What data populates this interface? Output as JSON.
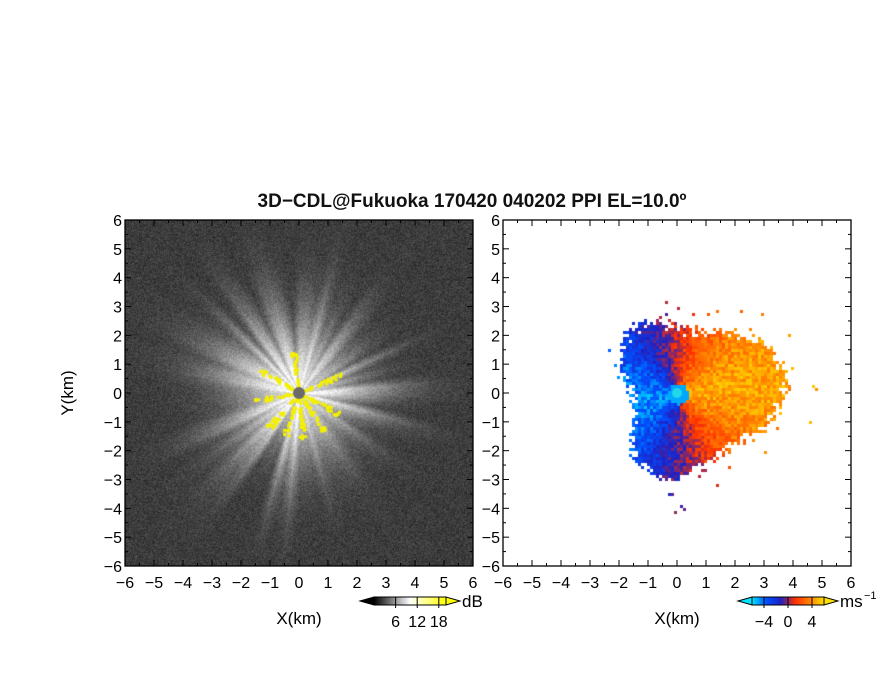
{
  "chart_data": {
    "title": "3D−CDL@Fukuoka 170420 040202 PPI EL=10.0º",
    "panels": [
      {
        "id": "reflectivity",
        "type": "heatmap",
        "xlabel": "X(km)",
        "ylabel": "Y(km)",
        "xlim": [
          -6,
          6
        ],
        "ylim": [
          -6,
          6
        ],
        "colorbar": {
          "unit": "dB",
          "ticks": [
            6,
            12,
            18
          ],
          "range": [
            0,
            20
          ],
          "colors": [
            "#000000",
            "#ffffff",
            "#ffff00"
          ]
        }
      },
      {
        "id": "velocity",
        "type": "heatmap",
        "xlabel": "X(km)",
        "ylabel": "",
        "xlim": [
          -6,
          6
        ],
        "ylim": [
          -6,
          6
        ],
        "colorbar": {
          "unit": "ms",
          "unit_exponent": "−1",
          "ticks": [
            -4,
            0,
            4
          ],
          "range": [
            -6,
            6
          ],
          "colors": [
            "#00e5ff",
            "#0050ff",
            "#2020c0",
            "#ff3000",
            "#ff8000",
            "#ffe000"
          ]
        }
      }
    ],
    "xticks": [
      -6,
      -5,
      -4,
      -3,
      -2,
      -1,
      0,
      1,
      2,
      3,
      4,
      5,
      6
    ],
    "yticks": [
      -6,
      -5,
      -4,
      -3,
      -2,
      -1,
      0,
      1,
      2,
      3,
      4,
      5,
      6
    ],
    "tick_labels": [
      "−6",
      "−5",
      "−4",
      "−3",
      "−2",
      "−1",
      "0",
      "1",
      "2",
      "3",
      "4",
      "5",
      "6"
    ],
    "colorbar_tick_labels": {
      "reflectivity": [
        "6",
        "12",
        "18"
      ],
      "velocity": [
        "−4",
        "0",
        "4"
      ]
    },
    "radar_site": {
      "x": 0,
      "y": 0
    }
  }
}
